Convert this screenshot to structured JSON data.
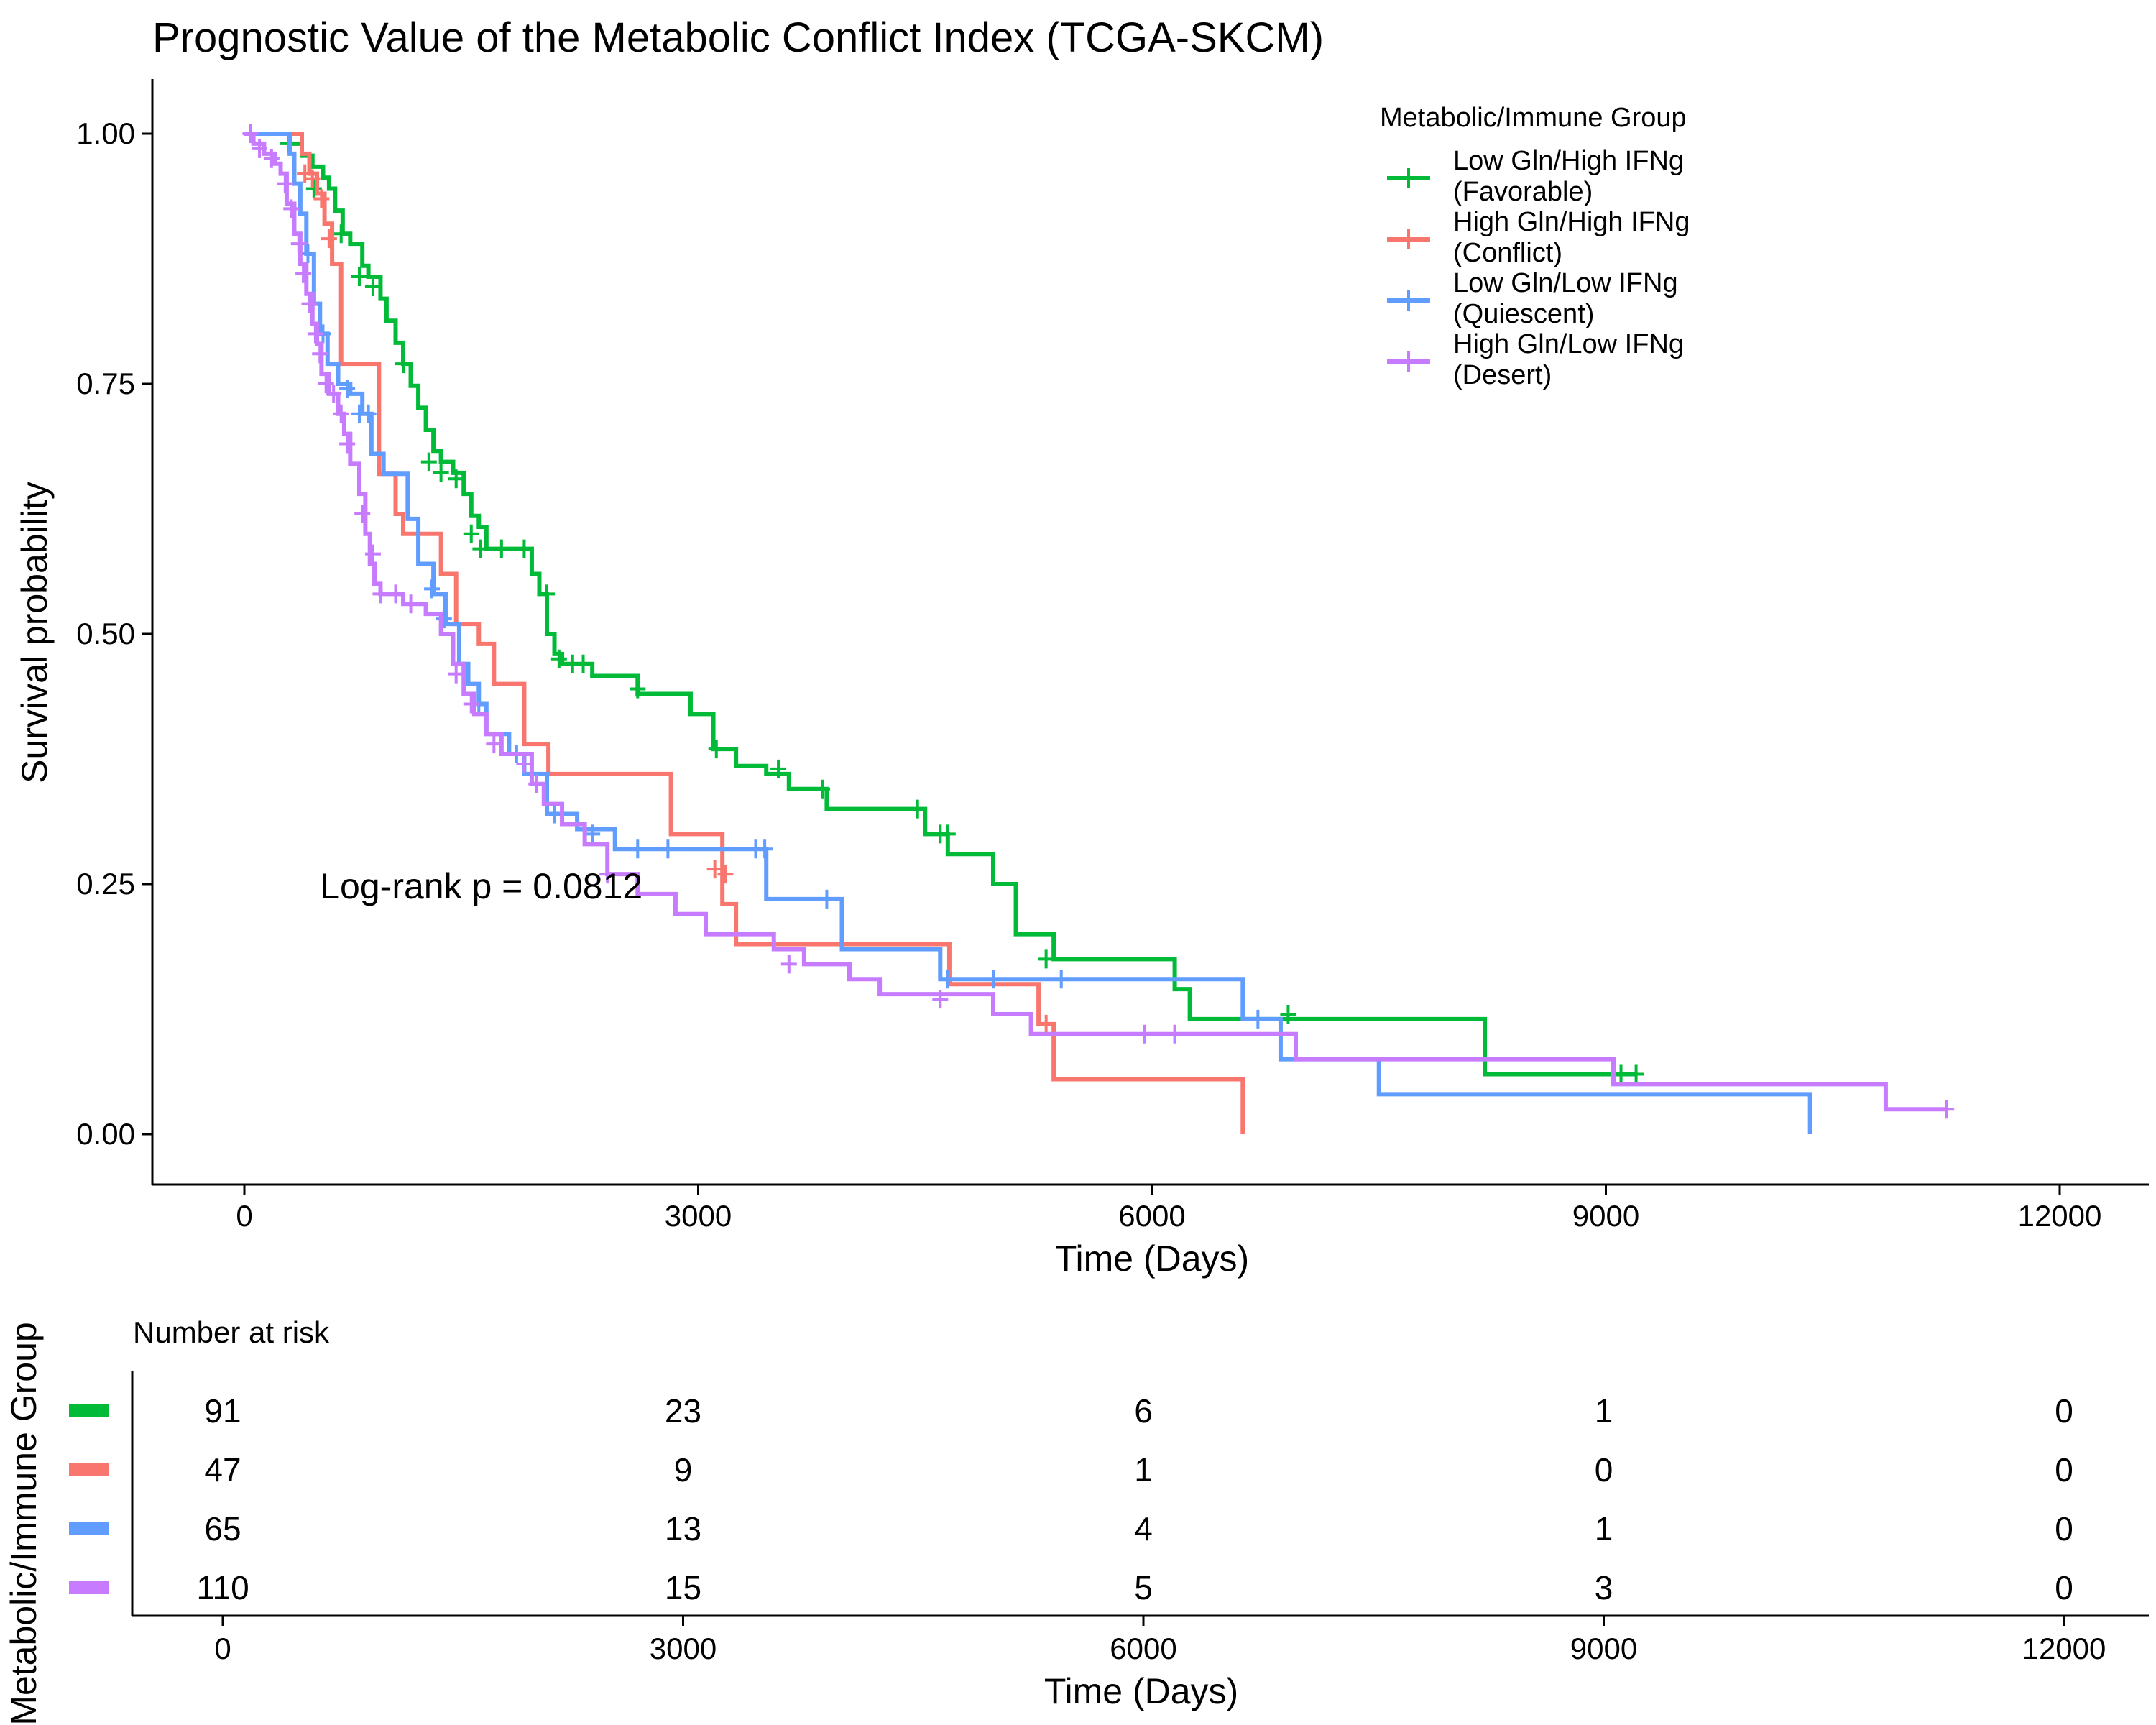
{
  "chart_data": [
    {
      "type": "line",
      "subtype": "kaplan-meier",
      "title": "Prognostic Value of the Metabolic Conflict Index (TCGA-SKCM)",
      "xlabel": "Time (Days)",
      "ylabel": "Survival probability",
      "xlim": [
        -600,
        12300
      ],
      "ylim": [
        -0.05,
        1.05
      ],
      "xticks": [
        0,
        3000,
        6000,
        9000,
        12000
      ],
      "xtick_labels": [
        "0",
        "3000",
        "6000",
        "9000",
        "12000"
      ],
      "yticks": [
        0,
        0.25,
        0.5,
        0.75,
        1.0
      ],
      "ytick_labels": [
        "0.00",
        "0.25",
        "0.50",
        "0.75",
        "1.00"
      ],
      "grid": false,
      "legend": {
        "title": "Metabolic/Immune Group",
        "placement": "top-right",
        "entries": [
          [
            "Low Gln/High IFNg",
            "(Favorable)"
          ],
          [
            "High Gln/High IFNg",
            "(Conflict)"
          ],
          [
            "Low Gln/Low IFNg",
            "(Quiescent)"
          ],
          [
            "High Gln/Low IFNg",
            "(Desert)"
          ]
        ]
      },
      "annotation": {
        "text": "Log-rank p = 0.0812",
        "x": 500,
        "y": 0.248
      },
      "series": [
        {
          "name": "Low Gln/High IFNg (Favorable)",
          "color": "#00BA38",
          "steps": [
            [
              0,
              1.0
            ],
            [
              300,
              0.99
            ],
            [
              380,
              0.978
            ],
            [
              450,
              0.967
            ],
            [
              520,
              0.956
            ],
            [
              560,
              0.945
            ],
            [
              600,
              0.923
            ],
            [
              650,
              0.9
            ],
            [
              700,
              0.89
            ],
            [
              780,
              0.868
            ],
            [
              820,
              0.857
            ],
            [
              900,
              0.835
            ],
            [
              940,
              0.813
            ],
            [
              1000,
              0.791
            ],
            [
              1050,
              0.77
            ],
            [
              1100,
              0.748
            ],
            [
              1150,
              0.726
            ],
            [
              1200,
              0.704
            ],
            [
              1250,
              0.683
            ],
            [
              1300,
              0.672
            ],
            [
              1380,
              0.661
            ],
            [
              1450,
              0.64
            ],
            [
              1500,
              0.618
            ],
            [
              1550,
              0.607
            ],
            [
              1600,
              0.585
            ],
            [
              1900,
              0.56
            ],
            [
              1950,
              0.54
            ],
            [
              2000,
              0.5
            ],
            [
              2050,
              0.48
            ],
            [
              2100,
              0.47
            ],
            [
              2300,
              0.458
            ],
            [
              2600,
              0.44
            ],
            [
              2950,
              0.42
            ],
            [
              3100,
              0.385
            ],
            [
              3250,
              0.368
            ],
            [
              3450,
              0.36
            ],
            [
              3600,
              0.345
            ],
            [
              3850,
              0.325
            ],
            [
              4500,
              0.3
            ],
            [
              4650,
              0.28
            ],
            [
              4950,
              0.25
            ],
            [
              5100,
              0.2
            ],
            [
              5350,
              0.175
            ],
            [
              6150,
              0.145
            ],
            [
              6250,
              0.115
            ],
            [
              8200,
              0.06
            ],
            [
              9200,
              0.06
            ]
          ],
          "censor": [
            [
              290,
              0.99
            ],
            [
              460,
              0.945
            ],
            [
              640,
              0.9
            ],
            [
              760,
              0.857
            ],
            [
              850,
              0.847
            ],
            [
              1050,
              0.77
            ],
            [
              1220,
              0.672
            ],
            [
              1300,
              0.661
            ],
            [
              1400,
              0.655
            ],
            [
              1500,
              0.6
            ],
            [
              1560,
              0.585
            ],
            [
              1700,
              0.585
            ],
            [
              1850,
              0.585
            ],
            [
              2000,
              0.54
            ],
            [
              2080,
              0.475
            ],
            [
              2170,
              0.47
            ],
            [
              2240,
              0.47
            ],
            [
              2600,
              0.445
            ],
            [
              3120,
              0.385
            ],
            [
              3530,
              0.365
            ],
            [
              3820,
              0.345
            ],
            [
              4450,
              0.325
            ],
            [
              4600,
              0.3
            ],
            [
              4650,
              0.3
            ],
            [
              5300,
              0.175
            ],
            [
              6900,
              0.12
            ],
            [
              9100,
              0.06
            ],
            [
              9200,
              0.06
            ]
          ]
        },
        {
          "name": "High Gln/High IFNg (Conflict)",
          "color": "#F8766D",
          "steps": [
            [
              0,
              1.0
            ],
            [
              380,
              0.98
            ],
            [
              430,
              0.96
            ],
            [
              480,
              0.94
            ],
            [
              530,
              0.91
            ],
            [
              580,
              0.87
            ],
            [
              640,
              0.77
            ],
            [
              890,
              0.66
            ],
            [
              1000,
              0.62
            ],
            [
              1050,
              0.6
            ],
            [
              1300,
              0.56
            ],
            [
              1400,
              0.51
            ],
            [
              1550,
              0.49
            ],
            [
              1650,
              0.45
            ],
            [
              1850,
              0.39
            ],
            [
              2010,
              0.36
            ],
            [
              2820,
              0.3
            ],
            [
              3160,
              0.23
            ],
            [
              3250,
              0.19
            ],
            [
              4660,
              0.15
            ],
            [
              5250,
              0.11
            ],
            [
              5350,
              0.055
            ],
            [
              6600,
              0.0
            ]
          ],
          "censor": [
            [
              400,
              0.96
            ],
            [
              450,
              0.955
            ],
            [
              510,
              0.935
            ],
            [
              560,
              0.895
            ],
            [
              3110,
              0.265
            ],
            [
              3180,
              0.26
            ],
            [
              5300,
              0.11
            ]
          ]
        },
        {
          "name": "Low Gln/Low IFNg (Quiescent)",
          "color": "#619CFF",
          "steps": [
            [
              0,
              1.0
            ],
            [
              300,
              0.98
            ],
            [
              330,
              0.95
            ],
            [
              370,
              0.92
            ],
            [
              410,
              0.88
            ],
            [
              460,
              0.83
            ],
            [
              500,
              0.8
            ],
            [
              550,
              0.77
            ],
            [
              620,
              0.75
            ],
            [
              700,
              0.74
            ],
            [
              780,
              0.72
            ],
            [
              840,
              0.68
            ],
            [
              920,
              0.66
            ],
            [
              1080,
              0.615
            ],
            [
              1150,
              0.57
            ],
            [
              1250,
              0.54
            ],
            [
              1330,
              0.51
            ],
            [
              1420,
              0.47
            ],
            [
              1480,
              0.45
            ],
            [
              1550,
              0.43
            ],
            [
              1600,
              0.4
            ],
            [
              1750,
              0.38
            ],
            [
              1850,
              0.36
            ],
            [
              2000,
              0.32
            ],
            [
              2200,
              0.305
            ],
            [
              2450,
              0.285
            ],
            [
              3450,
              0.235
            ],
            [
              3950,
              0.185
            ],
            [
              4600,
              0.155
            ],
            [
              6600,
              0.115
            ],
            [
              6850,
              0.075
            ],
            [
              7500,
              0.04
            ],
            [
              10350,
              0.0
            ]
          ],
          "censor": [
            [
              420,
              0.88
            ],
            [
              520,
              0.8
            ],
            [
              680,
              0.745
            ],
            [
              760,
              0.72
            ],
            [
              820,
              0.72
            ],
            [
              1240,
              0.545
            ],
            [
              1320,
              0.515
            ],
            [
              1550,
              0.43
            ],
            [
              1800,
              0.38
            ],
            [
              2050,
              0.32
            ],
            [
              2300,
              0.3
            ],
            [
              2600,
              0.285
            ],
            [
              2800,
              0.285
            ],
            [
              3380,
              0.285
            ],
            [
              3440,
              0.285
            ],
            [
              3850,
              0.235
            ],
            [
              4650,
              0.155
            ],
            [
              4950,
              0.155
            ],
            [
              5400,
              0.155
            ],
            [
              6700,
              0.115
            ]
          ]
        },
        {
          "name": "High Gln/Low IFNg (Desert)",
          "color": "#C77CFF",
          "steps": [
            [
              0,
              1.0
            ],
            [
              60,
              0.99
            ],
            [
              130,
              0.98
            ],
            [
              200,
              0.97
            ],
            [
              240,
              0.96
            ],
            [
              280,
              0.93
            ],
            [
              330,
              0.9
            ],
            [
              370,
              0.87
            ],
            [
              410,
              0.84
            ],
            [
              450,
              0.81
            ],
            [
              480,
              0.79
            ],
            [
              510,
              0.76
            ],
            [
              560,
              0.74
            ],
            [
              620,
              0.72
            ],
            [
              660,
              0.7
            ],
            [
              700,
              0.67
            ],
            [
              760,
              0.64
            ],
            [
              800,
              0.6
            ],
            [
              830,
              0.57
            ],
            [
              860,
              0.55
            ],
            [
              900,
              0.54
            ],
            [
              1050,
              0.53
            ],
            [
              1200,
              0.52
            ],
            [
              1300,
              0.5
            ],
            [
              1380,
              0.47
            ],
            [
              1450,
              0.44
            ],
            [
              1520,
              0.42
            ],
            [
              1600,
              0.4
            ],
            [
              1700,
              0.38
            ],
            [
              1900,
              0.35
            ],
            [
              1980,
              0.33
            ],
            [
              2100,
              0.31
            ],
            [
              2250,
              0.29
            ],
            [
              2400,
              0.26
            ],
            [
              2600,
              0.24
            ],
            [
              2850,
              0.22
            ],
            [
              3050,
              0.2
            ],
            [
              3500,
              0.185
            ],
            [
              3700,
              0.17
            ],
            [
              4000,
              0.155
            ],
            [
              4200,
              0.14
            ],
            [
              4950,
              0.12
            ],
            [
              5200,
              0.1
            ],
            [
              6950,
              0.075
            ],
            [
              9050,
              0.05
            ],
            [
              10850,
              0.025
            ],
            [
              11250,
              0.025
            ]
          ],
          "censor": [
            [
              40,
              1.0
            ],
            [
              100,
              0.985
            ],
            [
              180,
              0.975
            ],
            [
              270,
              0.95
            ],
            [
              310,
              0.925
            ],
            [
              360,
              0.89
            ],
            [
              390,
              0.86
            ],
            [
              430,
              0.83
            ],
            [
              470,
              0.8
            ],
            [
              500,
              0.78
            ],
            [
              540,
              0.75
            ],
            [
              590,
              0.74
            ],
            [
              640,
              0.72
            ],
            [
              680,
              0.69
            ],
            [
              780,
              0.62
            ],
            [
              850,
              0.58
            ],
            [
              900,
              0.54
            ],
            [
              1000,
              0.54
            ],
            [
              1100,
              0.53
            ],
            [
              1400,
              0.46
            ],
            [
              1500,
              0.43
            ],
            [
              1650,
              0.39
            ],
            [
              1850,
              0.37
            ],
            [
              1930,
              0.35
            ],
            [
              2400,
              0.26
            ],
            [
              3600,
              0.17
            ],
            [
              4600,
              0.135
            ],
            [
              5950,
              0.1
            ],
            [
              6150,
              0.1
            ],
            [
              11250,
              0.025
            ]
          ]
        }
      ]
    },
    {
      "type": "table",
      "title": "Number at risk",
      "ylabel": "Metabolic/Immune Group",
      "xlabel": "Time (Days)",
      "columns": [
        0,
        3000,
        6000,
        9000,
        12000
      ],
      "xtick_labels": [
        "0",
        "3000",
        "6000",
        "9000",
        "12000"
      ],
      "rows": [
        {
          "color": "#00BA38",
          "values": [
            "91",
            "23",
            "6",
            "1",
            "0"
          ]
        },
        {
          "color": "#F8766D",
          "values": [
            "47",
            "9",
            "1",
            "0",
            "0"
          ]
        },
        {
          "color": "#619CFF",
          "values": [
            "65",
            "13",
            "4",
            "1",
            "0"
          ]
        },
        {
          "color": "#C77CFF",
          "values": [
            "110",
            "15",
            "5",
            "3",
            "0"
          ]
        }
      ]
    }
  ]
}
